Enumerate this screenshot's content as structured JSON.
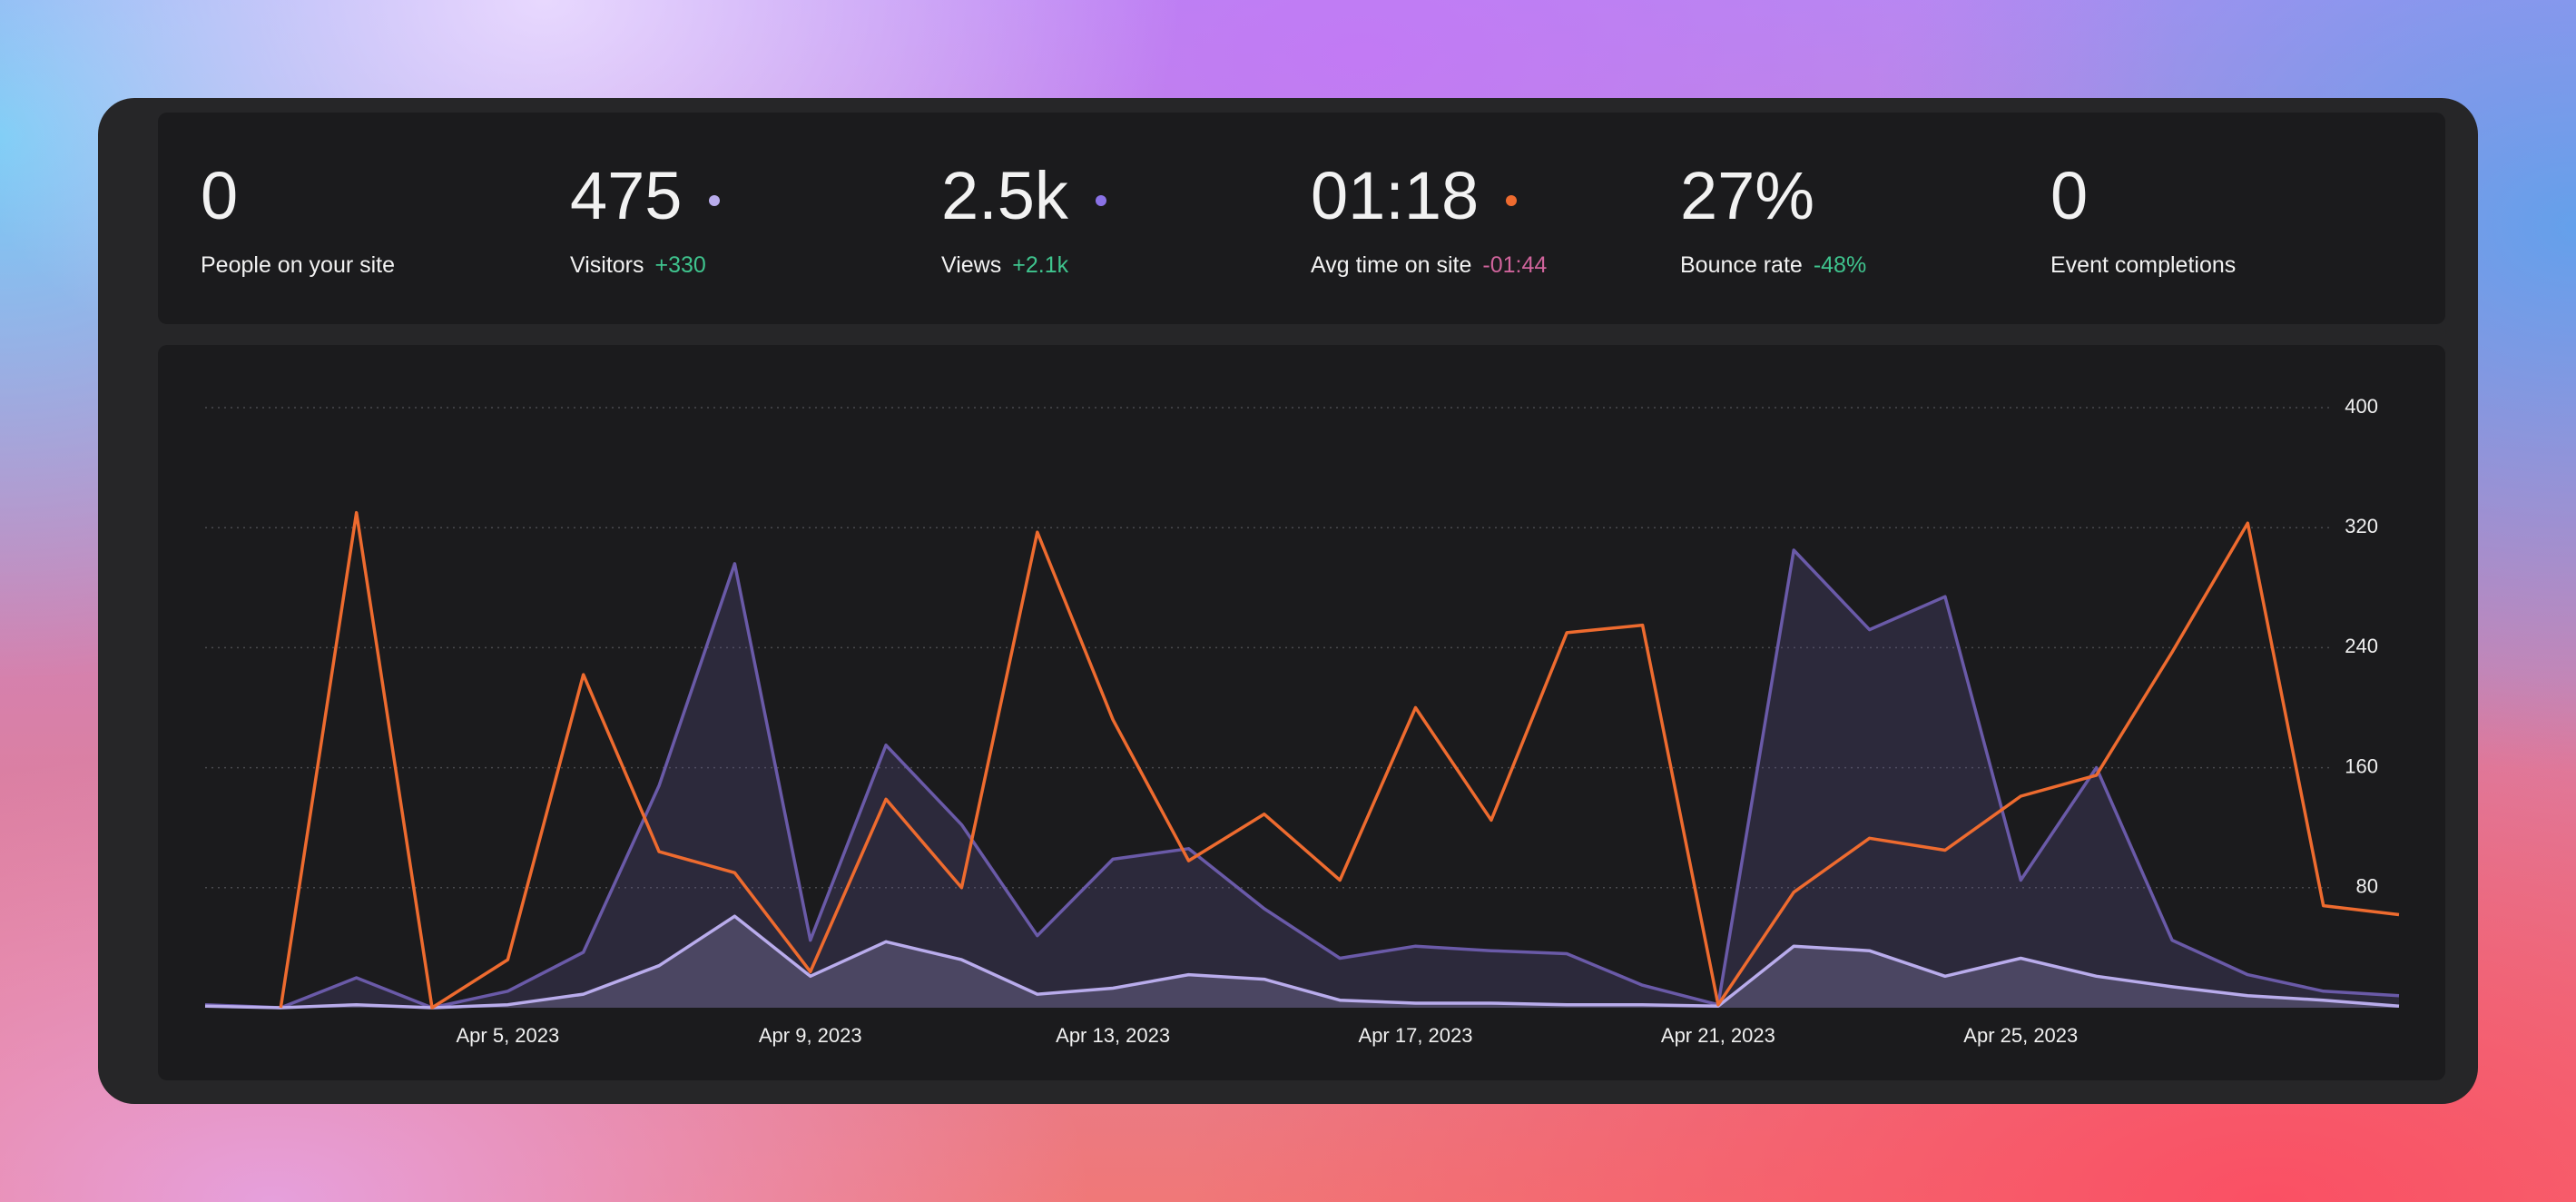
{
  "stats": [
    {
      "value": "0",
      "label": "People on your site"
    },
    {
      "value": "475",
      "label": "Visitors",
      "change": "+330",
      "color": "#b9acec"
    },
    {
      "value": "2.5k",
      "label": "Views",
      "change": "+2.1k",
      "color": "#8a72e6"
    },
    {
      "value": "01:18",
      "label": "Avg time on site",
      "change": "-01:44",
      "color": "#ee6b2f"
    },
    {
      "value": "27%",
      "label": "Bounce rate",
      "change": "-48%"
    },
    {
      "value": "0",
      "label": "Event completions"
    }
  ],
  "chart_data": {
    "type": "line",
    "x": [
      "2023-04-01",
      "2023-04-02",
      "2023-04-03",
      "2023-04-04",
      "2023-04-05",
      "2023-04-06",
      "2023-04-07",
      "2023-04-08",
      "2023-04-09",
      "2023-04-10",
      "2023-04-11",
      "2023-04-12",
      "2023-04-13",
      "2023-04-14",
      "2023-04-15",
      "2023-04-16",
      "2023-04-17",
      "2023-04-18",
      "2023-04-19",
      "2023-04-20",
      "2023-04-21",
      "2023-04-22",
      "2023-04-23",
      "2023-04-24",
      "2023-04-25",
      "2023-04-26",
      "2023-04-27",
      "2023-04-28",
      "2023-04-29",
      "2023-04-30"
    ],
    "xlim": [
      "2023-04-01",
      "2023-04-30"
    ],
    "xticks": [
      {
        "value": "2023-04-05",
        "label": "Apr 5, 2023"
      },
      {
        "value": "2023-04-09",
        "label": "Apr 9, 2023"
      },
      {
        "value": "2023-04-13",
        "label": "Apr 13, 2023"
      },
      {
        "value": "2023-04-17",
        "label": "Apr 17, 2023"
      },
      {
        "value": "2023-04-21",
        "label": "Apr 21, 2023"
      },
      {
        "value": "2023-04-25",
        "label": "Apr 25, 2023"
      }
    ],
    "ylim": [
      0,
      400
    ],
    "yticks": [
      80,
      160,
      240,
      320,
      400
    ],
    "grid": true,
    "series": [
      {
        "color": "#6a5aa8",
        "area": true,
        "values": [
          2,
          0,
          20,
          0,
          11,
          37,
          148,
          296,
          45,
          175,
          122,
          48,
          99,
          106,
          66,
          33,
          41,
          38,
          36,
          15,
          2,
          305,
          252,
          274,
          85,
          160,
          45,
          22,
          11,
          8
        ]
      },
      {
        "color": "#b9acec",
        "area": true,
        "values": [
          1,
          0,
          2,
          0,
          2,
          9,
          28,
          61,
          21,
          44,
          32,
          9,
          13,
          22,
          19,
          5,
          3,
          3,
          2,
          2,
          1,
          41,
          38,
          21,
          33,
          21,
          14,
          8,
          5,
          1
        ]
      },
      {
        "color": "#ee6b2f",
        "area": false,
        "values": [
          null,
          0,
          330,
          0,
          32,
          222,
          104,
          90,
          24,
          139,
          80,
          317,
          192,
          98,
          129,
          85,
          200,
          125,
          250,
          255,
          2,
          77,
          113,
          105,
          141,
          155,
          237,
          323,
          68,
          62
        ]
      }
    ]
  }
}
